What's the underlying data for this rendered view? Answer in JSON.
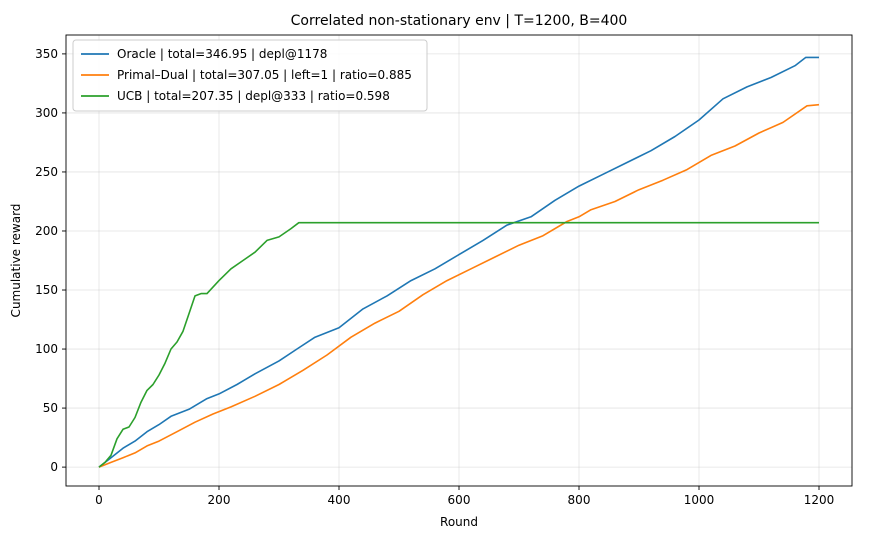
{
  "chart_data": {
    "type": "line",
    "title": "Correlated non-stationary env | T=1200, B=400",
    "xlabel": "Round",
    "ylabel": "Cumulative reward",
    "xlim": [
      -55,
      1255
    ],
    "ylim": [
      -16,
      366
    ],
    "xticks": [
      0,
      200,
      400,
      600,
      800,
      1000,
      1200
    ],
    "yticks": [
      0,
      50,
      100,
      150,
      200,
      250,
      300,
      350
    ],
    "grid": true,
    "legend_position": "top-left",
    "series": [
      {
        "name": "Oracle | total=346.95 | depl@1178",
        "color": "#1f77b4",
        "x": [
          0,
          20,
          40,
          60,
          80,
          100,
          120,
          150,
          180,
          200,
          230,
          260,
          300,
          330,
          360,
          400,
          440,
          480,
          520,
          560,
          600,
          640,
          680,
          720,
          760,
          800,
          840,
          880,
          920,
          960,
          1000,
          1040,
          1080,
          1120,
          1160,
          1178,
          1200
        ],
        "y": [
          0,
          8,
          16,
          22,
          30,
          36,
          43,
          49,
          58,
          62,
          70,
          79,
          90,
          100,
          110,
          118,
          134,
          145,
          158,
          168,
          180,
          192,
          205,
          212,
          226,
          238,
          248,
          258,
          268,
          280,
          294,
          312,
          322,
          330,
          340,
          347,
          347
        ]
      },
      {
        "name": "Primal–Dual | total=307.05 | left=1 | ratio=0.885",
        "color": "#ff7f0e",
        "x": [
          0,
          20,
          40,
          60,
          80,
          100,
          130,
          160,
          190,
          220,
          260,
          300,
          340,
          380,
          420,
          460,
          500,
          540,
          580,
          620,
          660,
          700,
          740,
          780,
          800,
          820,
          860,
          900,
          940,
          980,
          1020,
          1060,
          1100,
          1140,
          1180,
          1200
        ],
        "y": [
          0,
          4,
          8,
          12,
          18,
          22,
          30,
          38,
          45,
          51,
          60,
          70,
          82,
          95,
          110,
          122,
          132,
          146,
          158,
          168,
          178,
          188,
          196,
          208,
          212,
          218,
          225,
          235,
          243,
          252,
          264,
          272,
          283,
          292,
          306,
          307
        ]
      },
      {
        "name": "UCB | total=207.35 | depl@333 | ratio=0.598",
        "color": "#2ca02c",
        "x": [
          0,
          10,
          20,
          30,
          40,
          50,
          60,
          70,
          80,
          90,
          100,
          110,
          120,
          130,
          140,
          150,
          160,
          170,
          180,
          200,
          220,
          240,
          260,
          280,
          300,
          320,
          333,
          400,
          600,
          800,
          1000,
          1200
        ],
        "y": [
          0,
          4,
          10,
          24,
          32,
          34,
          42,
          55,
          65,
          70,
          78,
          88,
          100,
          106,
          115,
          130,
          145,
          147,
          147,
          158,
          168,
          175,
          182,
          192,
          195,
          202,
          207,
          207,
          207,
          207,
          207,
          207
        ]
      }
    ]
  }
}
